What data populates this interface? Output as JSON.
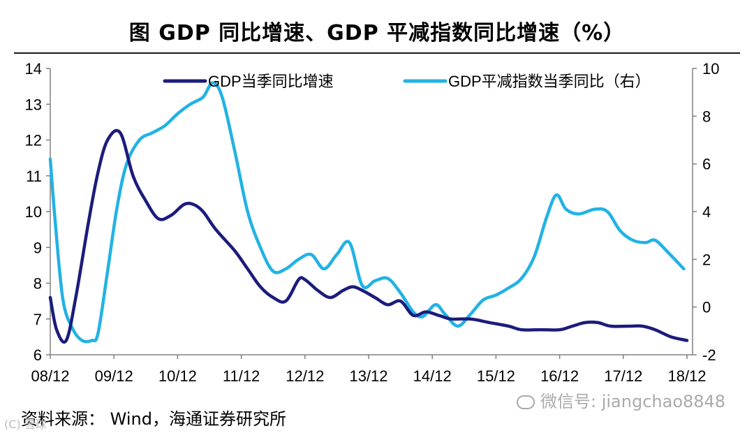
{
  "page": {
    "title": "图   GDP 同比增速、GDP 平减指数同比增速（%）",
    "source": "资料来源： Wind，海通证券研究所",
    "watermark": "微信号: jiangchao8848",
    "corner_mark": "(C) 雪球"
  },
  "chart_data": {
    "type": "line",
    "title": "GDP 同比增速、GDP 平减指数同比增速（%）",
    "x_tick_labels": [
      "08/12",
      "09/12",
      "10/12",
      "11/12",
      "12/12",
      "13/12",
      "14/12",
      "15/12",
      "16/12",
      "17/12",
      "18/12"
    ],
    "x_range": [
      2008.0,
      2018.0
    ],
    "y_left": {
      "range": [
        6,
        14
      ],
      "ticks": [
        6,
        7,
        8,
        9,
        10,
        11,
        12,
        13,
        14
      ]
    },
    "y_right": {
      "range": [
        -2,
        10
      ],
      "ticks": [
        -2,
        0,
        2,
        4,
        6,
        8,
        10
      ]
    },
    "legend_position": "top",
    "series": [
      {
        "name": "GDP当季同比增速",
        "axis": "left",
        "color": "#1c1c7c",
        "points": [
          [
            2008.0,
            7.6
          ],
          [
            2008.1,
            6.7
          ],
          [
            2008.25,
            6.4
          ],
          [
            2008.4,
            7.6
          ],
          [
            2008.6,
            9.7
          ],
          [
            2008.75,
            11.1
          ],
          [
            2008.9,
            12.0
          ],
          [
            2009.1,
            12.2
          ],
          [
            2009.3,
            11.0
          ],
          [
            2009.5,
            10.3
          ],
          [
            2009.7,
            9.8
          ],
          [
            2009.9,
            9.9
          ],
          [
            2010.1,
            10.2
          ],
          [
            2010.25,
            10.2
          ],
          [
            2010.4,
            10.0
          ],
          [
            2010.6,
            9.5
          ],
          [
            2010.9,
            8.9
          ],
          [
            2011.1,
            8.4
          ],
          [
            2011.3,
            7.9
          ],
          [
            2011.5,
            7.6
          ],
          [
            2011.7,
            7.5
          ],
          [
            2011.9,
            8.1
          ],
          [
            2012.0,
            8.1
          ],
          [
            2012.2,
            7.8
          ],
          [
            2012.4,
            7.6
          ],
          [
            2012.6,
            7.8
          ],
          [
            2012.75,
            7.9
          ],
          [
            2012.9,
            7.8
          ],
          [
            2013.1,
            7.6
          ],
          [
            2013.3,
            7.4
          ],
          [
            2013.5,
            7.5
          ],
          [
            2013.7,
            7.1
          ],
          [
            2013.9,
            7.2
          ],
          [
            2014.1,
            7.1
          ],
          [
            2014.3,
            7.0
          ],
          [
            2014.6,
            7.0
          ],
          [
            2014.9,
            6.9
          ],
          [
            2015.2,
            6.8
          ],
          [
            2015.4,
            6.7
          ],
          [
            2015.7,
            6.7
          ],
          [
            2016.0,
            6.7
          ],
          [
            2016.2,
            6.8
          ],
          [
            2016.4,
            6.9
          ],
          [
            2016.6,
            6.9
          ],
          [
            2016.8,
            6.8
          ],
          [
            2017.1,
            6.8
          ],
          [
            2017.3,
            6.8
          ],
          [
            2017.5,
            6.7
          ],
          [
            2017.75,
            6.5
          ],
          [
            2018.0,
            6.4
          ]
        ]
      },
      {
        "name": "GDP平减指数当季同比（右）",
        "axis": "right",
        "color": "#22b2e4",
        "points": [
          [
            2008.0,
            6.2
          ],
          [
            2008.08,
            3.5
          ],
          [
            2008.2,
            0.3
          ],
          [
            2008.35,
            -0.9
          ],
          [
            2008.5,
            -1.4
          ],
          [
            2008.65,
            -1.4
          ],
          [
            2008.75,
            -1.1
          ],
          [
            2008.9,
            1.5
          ],
          [
            2009.05,
            4.2
          ],
          [
            2009.2,
            6.0
          ],
          [
            2009.4,
            7.0
          ],
          [
            2009.6,
            7.3
          ],
          [
            2009.8,
            7.6
          ],
          [
            2010.0,
            8.1
          ],
          [
            2010.2,
            8.5
          ],
          [
            2010.4,
            8.8
          ],
          [
            2010.55,
            9.4
          ],
          [
            2010.7,
            8.8
          ],
          [
            2010.9,
            6.5
          ],
          [
            2011.1,
            4.0
          ],
          [
            2011.3,
            2.5
          ],
          [
            2011.5,
            1.5
          ],
          [
            2011.7,
            1.6
          ],
          [
            2011.9,
            2.0
          ],
          [
            2012.1,
            2.2
          ],
          [
            2012.3,
            1.6
          ],
          [
            2012.5,
            2.2
          ],
          [
            2012.7,
            2.7
          ],
          [
            2012.9,
            0.9
          ],
          [
            2013.1,
            1.1
          ],
          [
            2013.3,
            1.2
          ],
          [
            2013.5,
            0.6
          ],
          [
            2013.7,
            -0.2
          ],
          [
            2013.85,
            -0.4
          ],
          [
            2014.05,
            0.1
          ],
          [
            2014.2,
            -0.3
          ],
          [
            2014.4,
            -0.8
          ],
          [
            2014.6,
            -0.3
          ],
          [
            2014.8,
            0.3
          ],
          [
            2015.0,
            0.5
          ],
          [
            2015.2,
            0.8
          ],
          [
            2015.4,
            1.2
          ],
          [
            2015.6,
            2.1
          ],
          [
            2015.8,
            3.8
          ],
          [
            2015.95,
            4.7
          ],
          [
            2016.1,
            4.1
          ],
          [
            2016.3,
            3.9
          ],
          [
            2016.55,
            4.1
          ],
          [
            2016.75,
            4.0
          ],
          [
            2016.95,
            3.2
          ],
          [
            2017.15,
            2.8
          ],
          [
            2017.35,
            2.7
          ],
          [
            2017.5,
            2.8
          ],
          [
            2017.7,
            2.3
          ],
          [
            2017.95,
            1.6
          ]
        ]
      }
    ]
  }
}
